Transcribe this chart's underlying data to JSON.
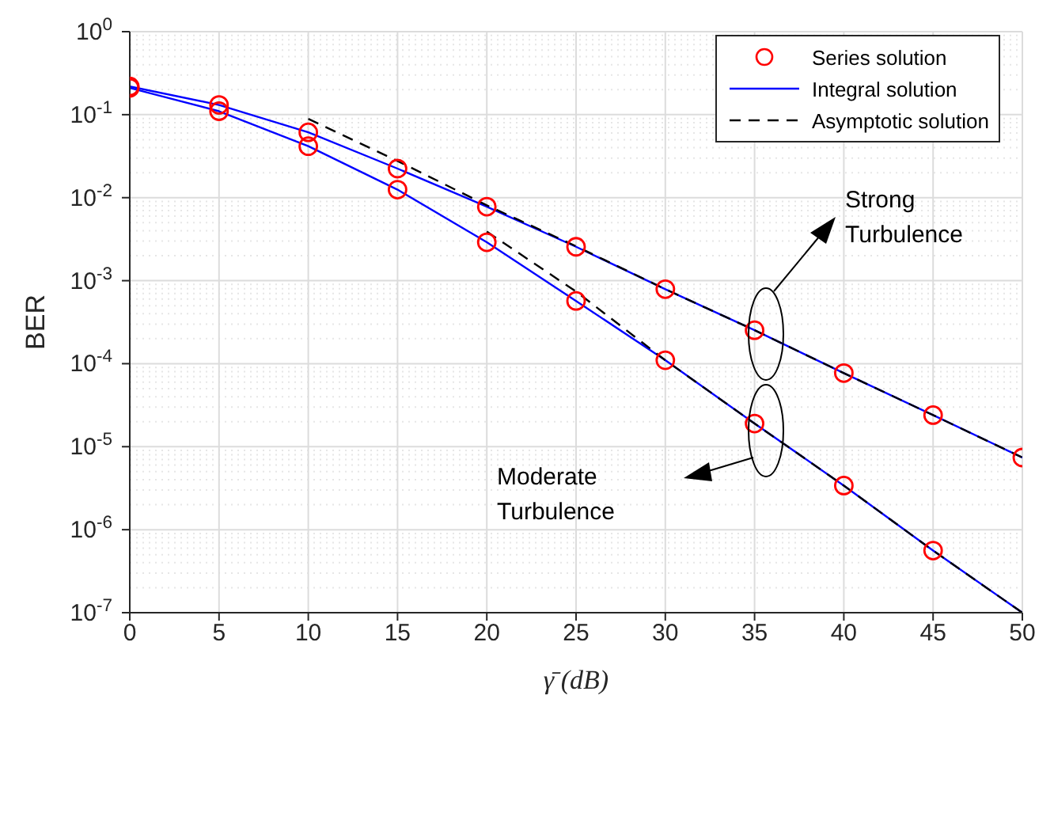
{
  "chart_data": {
    "type": "line",
    "xlabel": "γ̄ (dB)",
    "ylabel": "BER",
    "xlim": [
      0,
      50
    ],
    "xticks": [
      0,
      5,
      10,
      15,
      20,
      25,
      30,
      35,
      40,
      45,
      50
    ],
    "ylim": [
      1e-07,
      1
    ],
    "log": true,
    "yticks": [
      {
        "value": 1e-07,
        "label": "10$^{-7}$"
      },
      {
        "value": 1e-06,
        "label": "10$^{-6}$"
      },
      {
        "value": 1e-05,
        "label": "10$^{-5}$"
      },
      {
        "value": 0.0001,
        "label": "10$^{-4}$"
      },
      {
        "value": 0.001,
        "label": "10$^{-3}$"
      },
      {
        "value": 0.01,
        "label": "10$^{-2}$"
      },
      {
        "value": 0.1,
        "label": "10$^{-1}$"
      },
      {
        "value": 1,
        "label": "10$^{0}$"
      }
    ],
    "grid": true,
    "legend": "top right",
    "series": [
      {
        "name": "Series solution",
        "type": "scatter",
        "marker": "circle",
        "color": "#ff0000",
        "x": [
          0,
          5,
          10,
          15,
          20,
          25,
          30,
          35,
          40,
          45,
          50
        ],
        "values": [
          0.219,
          0.131,
          0.0612,
          0.0224,
          0.0078,
          0.00256,
          0.00079,
          0.000253,
          7.7e-05,
          2.4e-05,
          7.4e-06
        ]
      },
      {
        "name": "Integral solution",
        "line_style": "solid",
        "color": "#0000ff",
        "x": [
          0,
          5,
          10,
          15,
          20,
          25,
          30,
          35,
          40,
          45,
          50
        ],
        "values": [
          0.219,
          0.131,
          0.0612,
          0.0224,
          0.0078,
          0.00256,
          0.00079,
          0.000253,
          7.7e-05,
          2.4e-05,
          7.4e-06
        ]
      },
      {
        "name": "Asymptotic solution",
        "line_style": "dashed",
        "color": "#000000",
        "x": [
          10,
          15,
          20,
          25,
          30,
          35,
          40,
          45,
          50
        ],
        "values": [
          0.089,
          0.0277,
          0.0081,
          0.0026,
          0.00079,
          0.000253,
          7.7e-05,
          2.4e-05,
          7.4e-06
        ]
      },
      {
        "type": "scatter",
        "marker": "circle",
        "color": "#ff0000",
        "x": [
          0,
          5,
          10,
          15,
          20,
          25,
          30,
          35,
          40,
          45
        ],
        "values": [
          0.21,
          0.11,
          0.0417,
          0.0125,
          0.0029,
          0.00057,
          0.00011,
          1.9e-05,
          3.4e-06,
          5.6e-07
        ]
      },
      {
        "line_style": "solid",
        "color": "#0000ff",
        "x": [
          0,
          5,
          10,
          15,
          20,
          25,
          30,
          35,
          40,
          45,
          50
        ],
        "values": [
          0.21,
          0.11,
          0.0417,
          0.0125,
          0.0029,
          0.00057,
          0.00011,
          1.9e-05,
          3.4e-06,
          5.6e-07,
          1e-07
        ]
      },
      {
        "line_style": "dashed",
        "color": "#000000",
        "x": [
          20,
          25,
          30,
          35,
          40,
          45,
          50
        ],
        "values": [
          0.0039,
          0.00074,
          0.00011,
          1.9e-05,
          3.4e-06,
          5.6e-07,
          1e-07
        ]
      }
    ],
    "annotations": [
      "Strong Turbulence",
      "Moderate Turbulence"
    ]
  }
}
